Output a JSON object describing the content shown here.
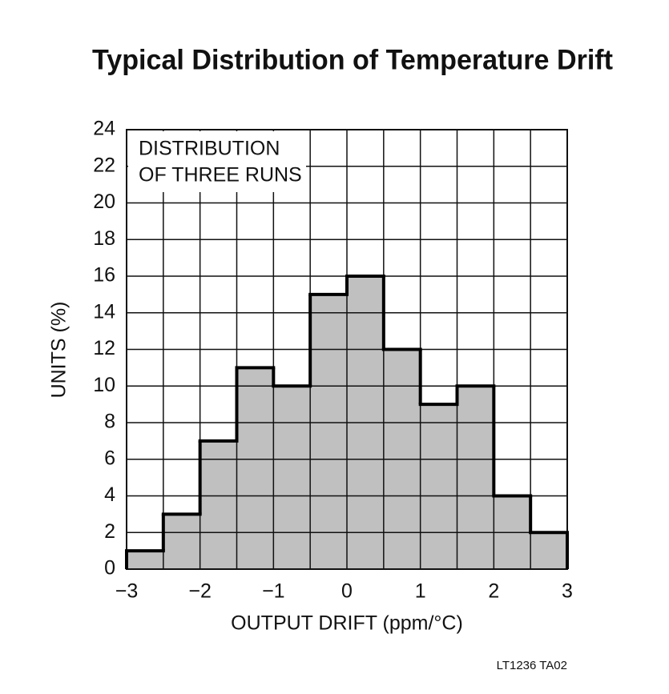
{
  "chart_data": {
    "type": "histogram",
    "title": "Typical Distribution of Temperature Drift",
    "xlabel": "OUTPUT DRIFT (ppm/°C)",
    "ylabel": "UNITS (%)",
    "annotation": [
      "DISTRIBUTION",
      "OF THREE RUNS"
    ],
    "footnote": "LT1236 TA02",
    "bins": [
      -3,
      -2.5,
      -2,
      -1.5,
      -1,
      -0.5,
      0,
      0.5,
      1,
      1.5,
      2,
      2.5,
      3
    ],
    "values": [
      1,
      3,
      7,
      11,
      10,
      15,
      16,
      12,
      9,
      10,
      4,
      2
    ],
    "color": "#c0c0c0",
    "xlim": [
      -3,
      3
    ],
    "xticks": [
      {
        "value": -3,
        "label": "−3"
      },
      {
        "value": -2,
        "label": "−2"
      },
      {
        "value": -1,
        "label": "−1"
      },
      0,
      1,
      2,
      3
    ],
    "ylim": [
      0,
      24
    ],
    "yticks": [
      0,
      2,
      4,
      6,
      8,
      10,
      12,
      14,
      16,
      18,
      20,
      22,
      24
    ],
    "grid": true
  }
}
